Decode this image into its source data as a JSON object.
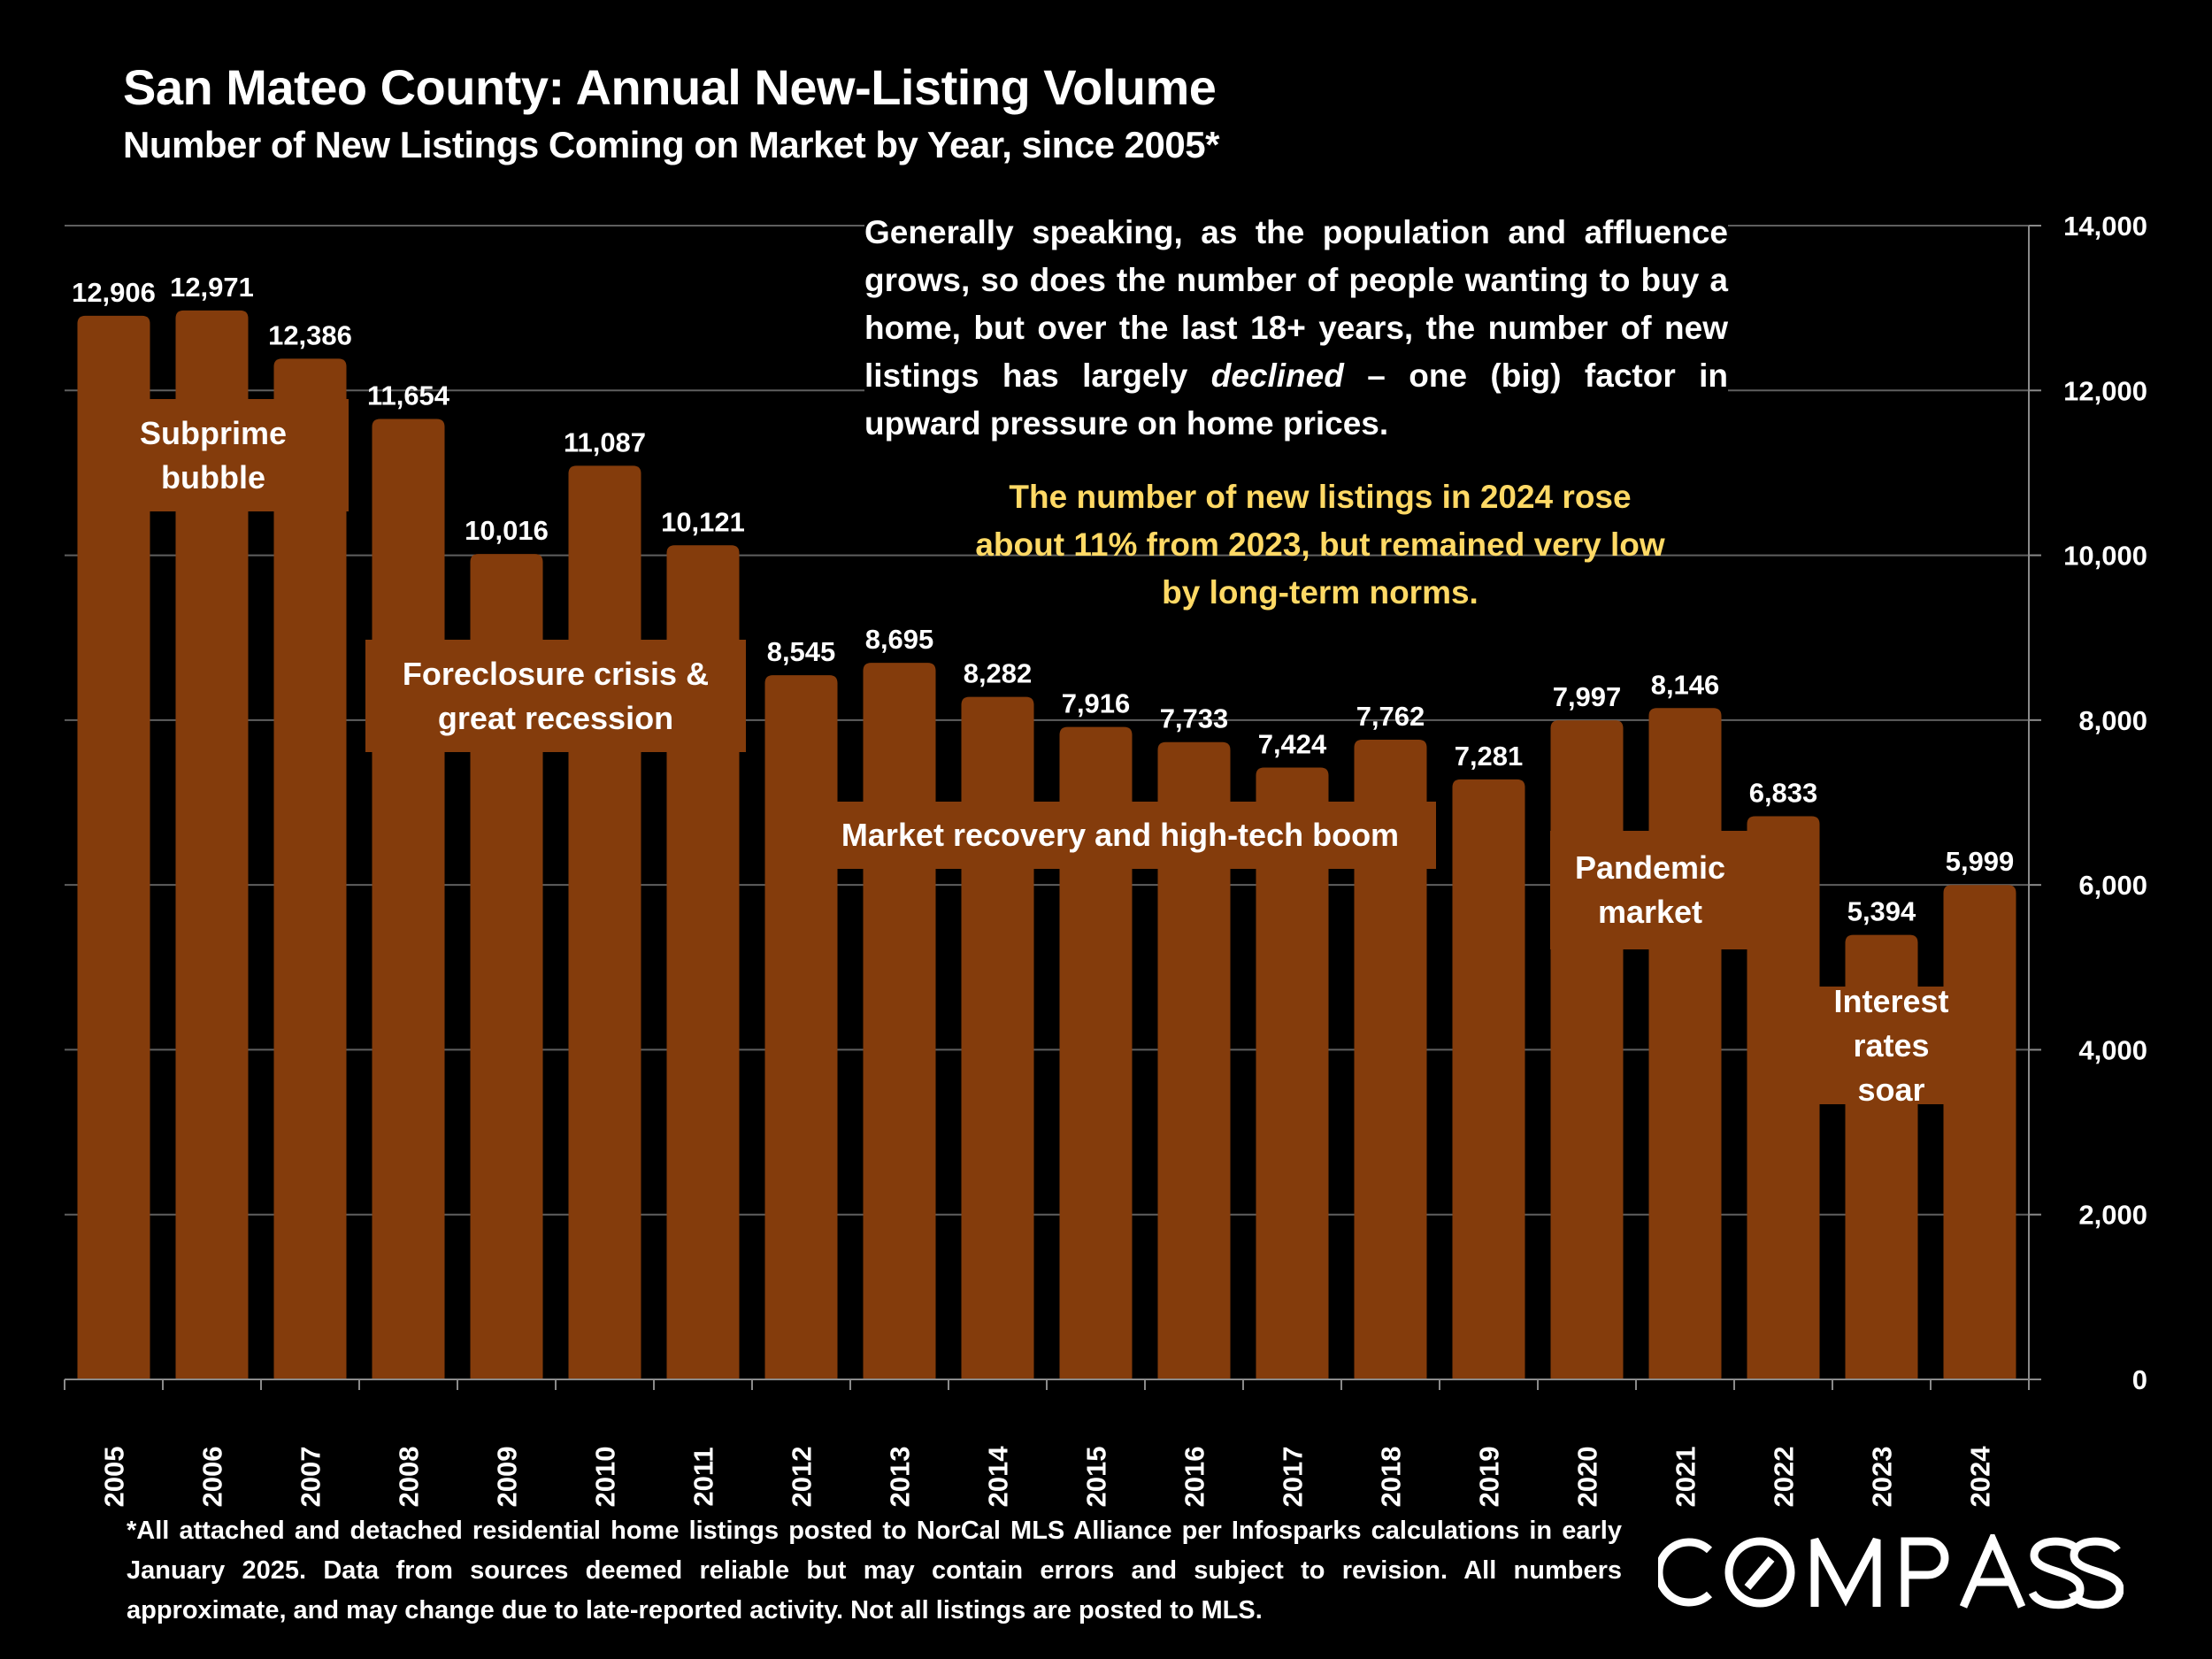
{
  "header": {
    "title": "San Mateo County: Annual New-Listing Volume",
    "subtitle": "Number of New Listings Coming on Market by Year, since 2005*"
  },
  "commentary": {
    "paragraph_before": "Generally speaking, as the population and affluence grows, so does the number of people wanting to buy a home, but over the last 18+ years, the number of new listings has largely ",
    "paragraph_emphasis": "declined",
    "paragraph_after": " – one (big) factor in upward pressure on home prices.",
    "highlight": "The number of new listings in 2024 rose about 11% from 2023, but remained very low by long-term norms."
  },
  "annotations": {
    "subprime": "Subprime bubble",
    "foreclosure": "Foreclosure crisis & great recession",
    "recovery": "Market recovery and high-tech boom",
    "pandemic": "Pandemic market",
    "interest": "Interest rates soar"
  },
  "footnote": "*All attached and detached residential home listings posted to NorCal MLS Alliance per Infosparks calculations in early January 2025. Data from sources deemed reliable but may contain errors and subject to revision. All numbers approximate, and may change due to late-reported activity. Not all listings are posted to MLS.",
  "logo": {
    "text": "COMPASS",
    "icon": "compass-logo"
  },
  "colors": {
    "bar": "#843c0c",
    "highlight_text": "#ffd965",
    "background": "#000000",
    "gridline": "#5f5f5f"
  },
  "chart_data": {
    "type": "bar",
    "title": "San Mateo County: Annual New-Listing Volume",
    "subtitle": "Number of New Listings Coming on Market by Year, since 2005*",
    "xlabel": "",
    "ylabel": "",
    "categories": [
      "2005",
      "2006",
      "2007",
      "2008",
      "2009",
      "2010",
      "2011",
      "2012",
      "2013",
      "2014",
      "2015",
      "2016",
      "2017",
      "2018",
      "2019",
      "2020",
      "2021",
      "2022",
      "2023",
      "2024"
    ],
    "values": [
      12906,
      12971,
      12386,
      11654,
      10016,
      11087,
      10121,
      8545,
      8695,
      8282,
      7916,
      7733,
      7424,
      7762,
      7281,
      7997,
      8146,
      6833,
      5394,
      5999
    ],
    "data_labels": [
      "12,906",
      "12,971",
      "12,386",
      "11,654",
      "10,016",
      "11,087",
      "10,121",
      "8,545",
      "8,695",
      "8,282",
      "7,916",
      "7,733",
      "7,424",
      "7,762",
      "7,281",
      "7,997",
      "8,146",
      "6,833",
      "5,394",
      "5,999"
    ],
    "ylim": [
      0,
      14000
    ],
    "yticks": [
      0,
      2000,
      4000,
      6000,
      8000,
      10000,
      12000,
      14000
    ],
    "ytick_labels": [
      "0",
      "2,000",
      "4,000",
      "6,000",
      "8,000",
      "10,000",
      "12,000",
      "14,000"
    ],
    "y_axis_side": "right",
    "grid": true,
    "legend": "none"
  }
}
